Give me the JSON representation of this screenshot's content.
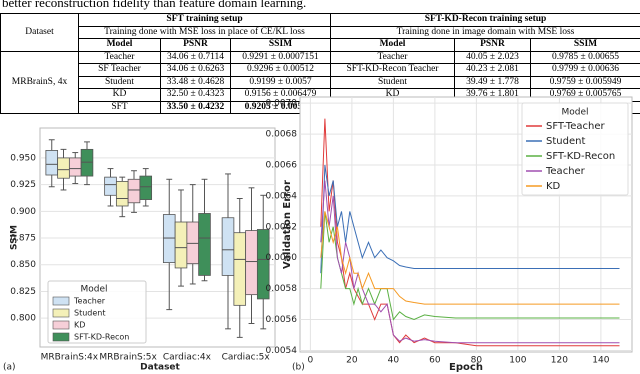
{
  "header_text": "better reconstruction fidelity than feature domain learning.",
  "table": {
    "dataset_header": "Dataset",
    "groups": [
      "SFT training setup",
      "SFT-KD-Recon training setup"
    ],
    "subheaders": [
      "Training done with MSE loss in place of CE/KL loss",
      "Training done in image domain with MSE loss"
    ],
    "columns": [
      "Model",
      "PSNR",
      "SSIM",
      "Model",
      "PSNR",
      "SSIM"
    ],
    "dataset": "MRBrainS, 4x",
    "rows": [
      [
        "Teacher",
        "34.06 ± 0.7114",
        "0.9291 ± 0.0007151",
        "Teacher",
        "40.05 ± 2.023",
        "0.9785 ± 0.00655"
      ],
      [
        "SF Teacher",
        "34.06 ± 0.6263",
        "0.9296 ± 0.00512",
        "SFT-KD-Recon Teacher",
        "40.23 ± 2.081",
        "0.9799 ± 0.00636"
      ],
      [
        "Student",
        "33.48 ± 0.4628",
        "0.9199 ± 0.0057",
        "Student",
        "39.49 ± 1.778",
        "0.9759 ± 0.005949"
      ],
      [
        "KD",
        "32.50 ± 0.4323",
        "0.9156 ± 0.006479",
        "KD",
        "39.76 ± 1.801",
        "0.9769 ± 0.005765"
      ],
      [
        "SFT",
        "33.50 ± 0.4232",
        "0.9205 ± 0.005292",
        "SFT-KD-Recon",
        "40.07 ± 1.983",
        "0.9789 ± 0.002996"
      ]
    ],
    "bold_cells": [
      [
        4,
        1
      ],
      [
        4,
        2
      ],
      [
        4,
        4
      ],
      [
        4,
        5
      ]
    ]
  },
  "chart_data": [
    {
      "type": "box",
      "panel_label": "(a)",
      "x_label": "Dataset",
      "y_label": "SSIM",
      "legend_title": "Model",
      "legend": "lower left",
      "grid": true,
      "categories": [
        "MRBrainS:4x",
        "MRBrainS:5x",
        "Cardiac:4x",
        "Cardiac:5x"
      ],
      "ylim": [
        0.773,
        0.978
      ],
      "yticks": [
        {
          "value": 0.8,
          "label": "0.800"
        },
        0.825,
        {
          "value": 0.85,
          "label": "0.850"
        },
        0.875,
        {
          "value": 0.9,
          "label": "0.900"
        },
        0.925,
        {
          "value": 0.95,
          "label": "0.950"
        }
      ],
      "series": [
        {
          "name": "Teacher",
          "color": "#cfe2f3",
          "low": [
            0.923,
            0.905,
            0.808,
            0.79
          ],
          "q1": [
            0.934,
            0.915,
            0.852,
            0.84
          ],
          "median": [
            0.944,
            0.925,
            0.875,
            0.864
          ],
          "q3": [
            0.957,
            0.932,
            0.897,
            0.894
          ],
          "high": [
            0.967,
            0.94,
            0.93,
            0.935
          ]
        },
        {
          "name": "Student",
          "color": "#f4f0b8",
          "low": [
            0.92,
            0.895,
            0.83,
            0.782
          ],
          "q1": [
            0.931,
            0.905,
            0.847,
            0.812
          ],
          "median": [
            0.939,
            0.912,
            0.866,
            0.855
          ],
          "q3": [
            0.95,
            0.928,
            0.89,
            0.88
          ],
          "high": [
            0.958,
            0.932,
            0.92,
            0.912
          ]
        },
        {
          "name": "KD",
          "color": "#f6cfd8",
          "low": [
            0.926,
            0.899,
            0.832,
            0.795
          ],
          "q1": [
            0.933,
            0.908,
            0.851,
            0.822
          ],
          "median": [
            0.94,
            0.92,
            0.87,
            0.853
          ],
          "q3": [
            0.95,
            0.93,
            0.89,
            0.882
          ],
          "high": [
            0.955,
            0.938,
            0.925,
            0.922
          ]
        },
        {
          "name": "SFT-KD-Recon",
          "color": "#3f8f5a",
          "low": [
            0.925,
            0.905,
            0.835,
            0.79
          ],
          "q1": [
            0.933,
            0.911,
            0.84,
            0.818
          ],
          "median": [
            0.946,
            0.923,
            0.875,
            0.855
          ],
          "q3": [
            0.958,
            0.933,
            0.898,
            0.883
          ],
          "high": [
            0.965,
            0.94,
            0.93,
            0.915
          ]
        }
      ]
    },
    {
      "type": "line",
      "panel_label": "(b)",
      "x_label": "Epoch",
      "y_label": "Validation Error",
      "legend_title": "Model",
      "legend": "upper right",
      "grid": true,
      "x": [
        5,
        7,
        9,
        11,
        13,
        15,
        17,
        19,
        21,
        23,
        25,
        28,
        31,
        34,
        37,
        40,
        43,
        46,
        50,
        55,
        60,
        70,
        80,
        90,
        100,
        110,
        120,
        130,
        140,
        149
      ],
      "xlim": [
        -5,
        155
      ],
      "xticks": [
        0,
        20,
        40,
        60,
        80,
        100,
        120,
        140
      ],
      "ylim": [
        0.00539,
        0.00704
      ],
      "yticks": [
        0.0054,
        0.0056,
        0.0058,
        {
          "value": 0.006,
          "label": "0.0060"
        },
        0.0062,
        0.0064,
        0.0066,
        0.0068,
        {
          "value": 0.007,
          "label": "0.0070"
        }
      ],
      "series": [
        {
          "name": "SFT-Teacher",
          "color": "#e03b3b",
          "values": [
            0.0062,
            0.0069,
            0.0063,
            0.0065,
            0.0061,
            0.006,
            0.0058,
            0.0059,
            0.0058,
            0.00575,
            0.0057,
            0.0057,
            0.0056,
            0.0057,
            0.0057,
            0.0055,
            0.00545,
            0.0055,
            0.00545,
            0.00548,
            0.00545,
            0.00545,
            0.00543,
            0.00543,
            0.00543,
            0.00543,
            0.00543,
            0.00543,
            0.00543,
            0.00543
          ]
        },
        {
          "name": "Student",
          "color": "#3b6fb6",
          "values": [
            0.0059,
            0.0066,
            0.0064,
            0.0065,
            0.0062,
            0.0063,
            0.0061,
            0.0063,
            0.0062,
            0.0061,
            0.006,
            0.0061,
            0.006,
            0.00605,
            0.006,
            0.00598,
            0.00595,
            0.00594,
            0.00593,
            0.00593,
            0.00593,
            0.00593,
            0.00593,
            0.00593,
            0.00593,
            0.00593,
            0.00593,
            0.00593,
            0.00593,
            0.00593
          ]
        },
        {
          "name": "SFT-KD-Recon",
          "color": "#5ab043",
          "values": [
            0.0058,
            0.0063,
            0.0061,
            0.0062,
            0.006,
            0.0059,
            0.0058,
            0.0058,
            0.0057,
            0.0058,
            0.0057,
            0.0058,
            0.0057,
            0.0058,
            0.0058,
            0.0056,
            0.00565,
            0.00562,
            0.0056,
            0.00563,
            0.00562,
            0.00561,
            0.00561,
            0.00561,
            0.00561,
            0.00561,
            0.00561,
            0.00561,
            0.00561,
            0.00561
          ]
        },
        {
          "name": "Teacher",
          "color": "#a04fb0",
          "values": [
            0.0061,
            0.0065,
            0.0062,
            0.0064,
            0.006,
            0.0059,
            0.0061,
            0.006,
            0.0058,
            0.0059,
            0.0058,
            0.0057,
            0.0057,
            0.00565,
            0.0057,
            0.0055,
            0.00546,
            0.00548,
            0.00546,
            0.00547,
            0.00546,
            0.00545,
            0.00545,
            0.00545,
            0.00545,
            0.00545,
            0.00545,
            0.00545,
            0.00545,
            0.00545
          ]
        },
        {
          "name": "KD",
          "color": "#f59a23",
          "values": [
            0.006,
            0.0063,
            0.0062,
            0.0061,
            0.0062,
            0.006,
            0.0059,
            0.006,
            0.0059,
            0.0059,
            0.0058,
            0.0059,
            0.0058,
            0.0058,
            0.0058,
            0.0058,
            0.00575,
            0.00572,
            0.00571,
            0.0057,
            0.0057,
            0.0057,
            0.0057,
            0.0057,
            0.0057,
            0.0057,
            0.0057,
            0.0057,
            0.0057,
            0.0057
          ]
        }
      ]
    }
  ]
}
